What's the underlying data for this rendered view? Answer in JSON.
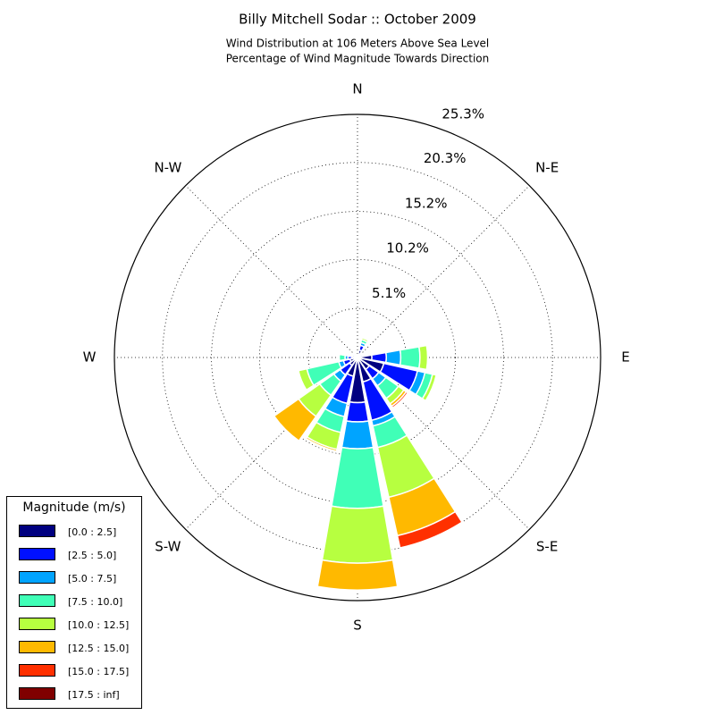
{
  "chart_data": {
    "type": "windrose",
    "title": "Billy Mitchell Sodar :: October 2009",
    "subtitle": [
      "Wind Distribution at 106 Meters Above Sea Level",
      "Percentage of Wind Magnitude Towards Direction"
    ],
    "categories": [
      "N",
      null,
      "N-E",
      null,
      "E",
      null,
      "S-E",
      null,
      "S",
      null,
      "S-W",
      null,
      "W",
      null,
      "N-W",
      null
    ],
    "rlim": [
      0,
      25.3
    ],
    "rticks": [
      {
        "value": 5.1,
        "label": "5.1%"
      },
      {
        "value": 10.2,
        "label": "10.2%"
      },
      {
        "value": 15.2,
        "label": "15.2%"
      },
      {
        "value": 20.3,
        "label": "20.3%"
      },
      {
        "value": 25.3,
        "label": "25.3%"
      }
    ],
    "grid": true,
    "legend_title": "Magnitude (m/s)",
    "legend_position": "lower-left",
    "series": [
      {
        "name": "[0.0 : 2.5]",
        "color": "#000080",
        "values": [
          0.3,
          0.8,
          0.3,
          0.3,
          1.5,
          2.8,
          1.5,
          2.6,
          4.7,
          2.0,
          1.0,
          0.8,
          0.6,
          0.3,
          0.3,
          0.3
        ]
      },
      {
        "name": "[2.5 : 5.0]",
        "color": "#0010ff",
        "values": [
          0,
          0.5,
          0.2,
          0.2,
          1.5,
          3.6,
          1.2,
          4.1,
          2.0,
          2.9,
          1.2,
          0.7,
          0.4,
          0.2,
          0.2,
          0
        ]
      },
      {
        "name": "[5.0 : 7.5]",
        "color": "#00a4ff",
        "values": [
          0,
          0.3,
          0,
          0,
          1.5,
          0.8,
          0.9,
          0.6,
          2.8,
          1.4,
          0.8,
          0.5,
          0.3,
          0,
          0,
          0
        ]
      },
      {
        "name": "[7.5 : 10.0]",
        "color": "#40ffb7",
        "values": [
          0,
          0.3,
          0,
          0,
          2.0,
          0.8,
          1.6,
          2.3,
          6.2,
          1.7,
          1.8,
          3.4,
          0.6,
          0,
          0,
          0
        ]
      },
      {
        "name": "[10.0 : 12.5]",
        "color": "#b7ff40",
        "values": [
          0,
          0.2,
          0,
          0,
          0.8,
          0.4,
          0.7,
          5.3,
          5.7,
          1.8,
          2.7,
          0.9,
          0,
          0,
          0,
          0
        ]
      },
      {
        "name": "[12.5 : 15.0]",
        "color": "#ffb900",
        "values": [
          0,
          0,
          0,
          0,
          0,
          0,
          0.3,
          4.1,
          2.8,
          0.2,
          3.1,
          0,
          0,
          0,
          0,
          0
        ]
      },
      {
        "name": "[15.0 : 17.5]",
        "color": "#ff3000",
        "values": [
          0,
          0,
          0,
          0,
          0,
          0,
          0.2,
          1.3,
          0,
          0.1,
          0,
          0,
          0,
          0,
          0,
          0
        ]
      },
      {
        "name": "[17.5 : inf]",
        "color": "#800000",
        "values": [
          0,
          0,
          0,
          0,
          0,
          0,
          0,
          0,
          0,
          0,
          0,
          0,
          0,
          0,
          0,
          0
        ]
      }
    ]
  }
}
